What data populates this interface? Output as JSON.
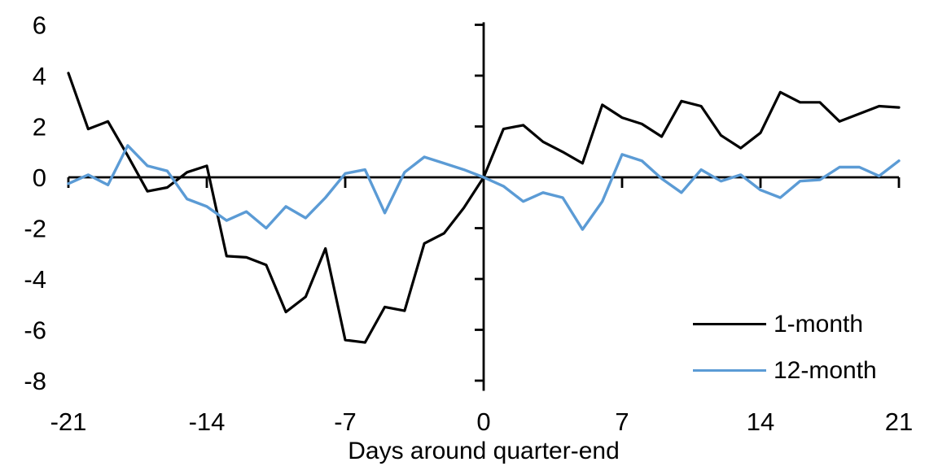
{
  "chart_data": {
    "type": "line",
    "title": "",
    "xlabel": "Days around quarter-end",
    "ylabel": "",
    "xlim": [
      -21,
      21
    ],
    "ylim": [
      -8.4,
      6.1
    ],
    "grid": false,
    "legend_position": "lower right",
    "x_ticks": [
      -21,
      -14,
      -7,
      0,
      7,
      14,
      21
    ],
    "y_ticks": [
      6,
      4,
      2,
      0,
      -2,
      -4,
      -6,
      -8
    ],
    "axis_color": "#000000",
    "x": [
      -21,
      -20,
      -19,
      -18,
      -17,
      -16,
      -15,
      -14,
      -13,
      -12,
      -11,
      -10,
      -9,
      -8,
      -7,
      -6,
      -5,
      -4,
      -3,
      -2,
      -1,
      0,
      1,
      2,
      3,
      4,
      5,
      6,
      7,
      8,
      9,
      10,
      11,
      12,
      13,
      14,
      15,
      16,
      17,
      18,
      19,
      20,
      21
    ],
    "series": [
      {
        "name": "1-month",
        "color": "#000000",
        "values": [
          4.1,
          1.9,
          2.2,
          0.85,
          -0.55,
          -0.4,
          0.2,
          0.45,
          -3.1,
          -3.15,
          -3.45,
          -5.3,
          -4.7,
          -2.8,
          -6.4,
          -6.5,
          -5.1,
          -5.25,
          -2.6,
          -2.2,
          -1.2,
          0,
          1.9,
          2.05,
          1.4,
          1.0,
          0.55,
          2.85,
          2.35,
          2.1,
          1.6,
          3.0,
          2.8,
          1.65,
          1.15,
          1.75,
          3.35,
          2.95,
          2.95,
          2.2,
          2.5,
          2.8,
          2.75
        ]
      },
      {
        "name": "12-month",
        "color": "#5B9BD5",
        "values": [
          -0.25,
          0.1,
          -0.3,
          1.25,
          0.45,
          0.25,
          -0.85,
          -1.15,
          -1.7,
          -1.35,
          -2.0,
          -1.15,
          -1.6,
          -0.8,
          0.15,
          0.3,
          -1.4,
          0.2,
          0.8,
          0.55,
          0.3,
          0,
          -0.35,
          -0.95,
          -0.6,
          -0.8,
          -2.05,
          -0.95,
          0.9,
          0.65,
          -0.05,
          -0.6,
          0.3,
          -0.15,
          0.1,
          -0.5,
          -0.8,
          -0.15,
          -0.1,
          0.4,
          0.4,
          0.05,
          0.65
        ]
      }
    ]
  }
}
